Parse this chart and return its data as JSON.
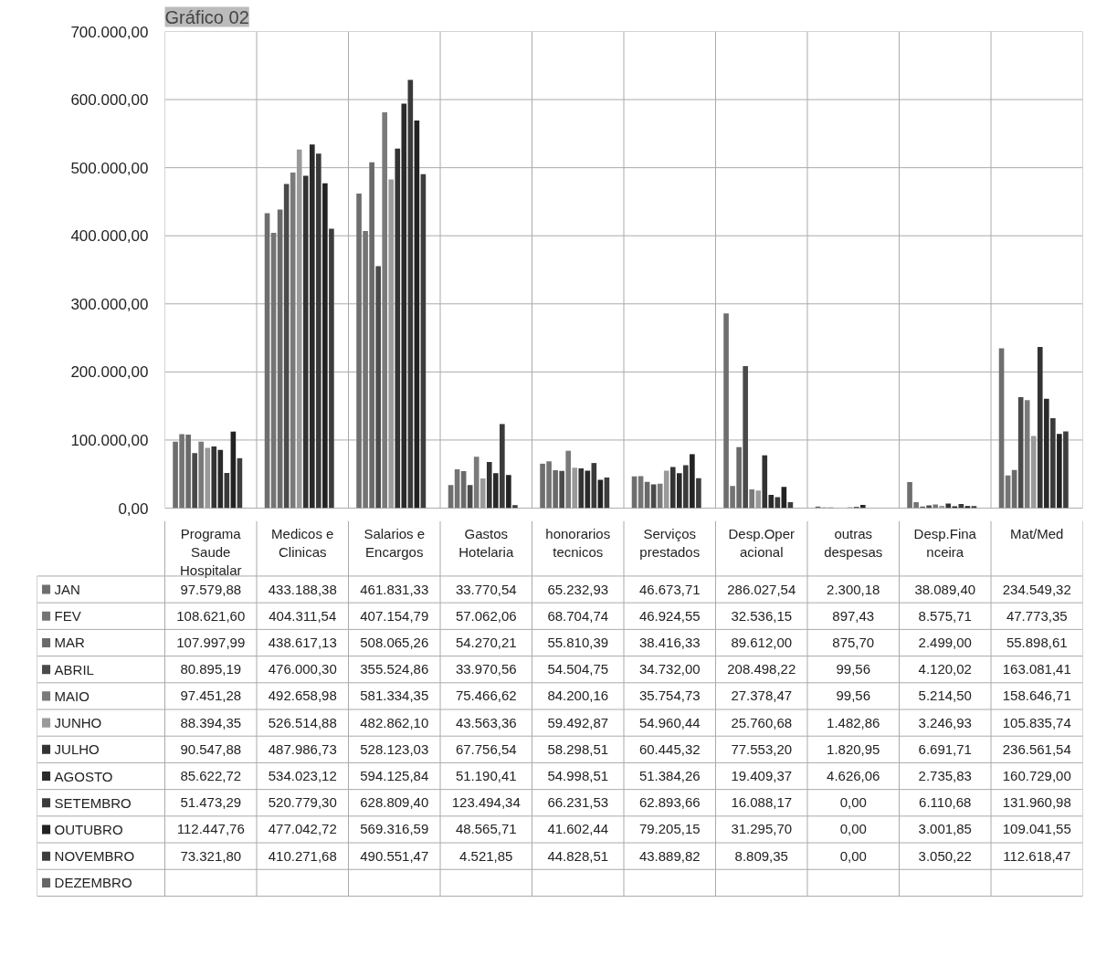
{
  "chart_data": {
    "type": "bar",
    "title": "Gráfico 02",
    "categories": [
      "Programa Saude Hospitalar",
      "Medicos e Clinicas",
      "Salarios e Encargos",
      "Gastos Hotelaria",
      "honorarios tecnicos",
      "Serviços prestados",
      "Desp.Operacional",
      "outras despesas",
      "Desp.Financeira",
      "Mat/Med"
    ],
    "series": [
      {
        "name": "JAN",
        "color": "#6e6e6e",
        "values": [
          97579.88,
          433188.38,
          461831.33,
          33770.54,
          65232.93,
          46673.71,
          286027.54,
          2300.18,
          38089.4,
          234549.32
        ],
        "value_labels": [
          "97.579,88",
          "433.188,38",
          "461.831,33",
          "33.770,54",
          "65.232,93",
          "46.673,71",
          "286.027,54",
          "2.300,18",
          "38.089,40",
          "234.549,32"
        ]
      },
      {
        "name": "FEV",
        "color": "#747474",
        "values": [
          108621.6,
          404311.54,
          407154.79,
          57062.06,
          68704.74,
          46924.55,
          32536.15,
          897.43,
          8575.71,
          47773.35
        ],
        "value_labels": [
          "108.621,60",
          "404.311,54",
          "407.154,79",
          "57.062,06",
          "68.704,74",
          "46.924,55",
          "32.536,15",
          "897,43",
          "8.575,71",
          "47.773,35"
        ]
      },
      {
        "name": "MAR",
        "color": "#6a6a6a",
        "values": [
          107997.99,
          438617.13,
          508065.26,
          54270.21,
          55810.39,
          38416.33,
          89612.0,
          875.7,
          2499.0,
          55898.61
        ],
        "value_labels": [
          "107.997,99",
          "438.617,13",
          "508.065,26",
          "54.270,21",
          "55.810,39",
          "38.416,33",
          "89.612,00",
          "875,70",
          "2.499,00",
          "55.898,61"
        ]
      },
      {
        "name": "ABRIL",
        "color": "#4a4a4a",
        "values": [
          80895.19,
          476000.3,
          355524.86,
          33970.56,
          54504.75,
          34732.0,
          208498.22,
          99.56,
          4120.02,
          163081.41
        ],
        "value_labels": [
          "80.895,19",
          "476.000,30",
          "355.524,86",
          "33.970,56",
          "54.504,75",
          "34.732,00",
          "208.498,22",
          "99,56",
          "4.120,02",
          "163.081,41"
        ]
      },
      {
        "name": "MAIO",
        "color": "#7a7a7a",
        "values": [
          97451.28,
          492658.98,
          581334.35,
          75466.62,
          84200.16,
          35754.73,
          27378.47,
          99.56,
          5214.5,
          158646.71
        ],
        "value_labels": [
          "97.451,28",
          "492.658,98",
          "581.334,35",
          "75.466,62",
          "84.200,16",
          "35.754,73",
          "27.378,47",
          "99,56",
          "5.214,50",
          "158.646,71"
        ]
      },
      {
        "name": "JUNHO",
        "color": "#9a9a9a",
        "values": [
          88394.35,
          526514.88,
          482862.1,
          43563.36,
          59492.87,
          54960.44,
          25760.68,
          1482.86,
          3246.93,
          105835.74
        ],
        "value_labels": [
          "88.394,35",
          "526.514,88",
          "482.862,10",
          "43.563,36",
          "59.492,87",
          "54.960,44",
          "25.760,68",
          "1.482,86",
          "3.246,93",
          "105.835,74"
        ]
      },
      {
        "name": "JULHO",
        "color": "#333333",
        "values": [
          90547.88,
          487986.73,
          528123.03,
          67756.54,
          58298.51,
          60445.32,
          77553.2,
          1820.95,
          6691.71,
          236561.54
        ],
        "value_labels": [
          "90.547,88",
          "487.986,73",
          "528.123,03",
          "67.756,54",
          "58.298,51",
          "60.445,32",
          "77.553,20",
          "1.820,95",
          "6.691,71",
          "236.561,54"
        ]
      },
      {
        "name": "AGOSTO",
        "color": "#2a2a2a",
        "values": [
          85622.72,
          534023.12,
          594125.84,
          51190.41,
          54998.51,
          51384.26,
          19409.37,
          4626.06,
          2735.83,
          160729.0
        ],
        "value_labels": [
          "85.622,72",
          "534.023,12",
          "594.125,84",
          "51.190,41",
          "54.998,51",
          "51.384,26",
          "19.409,37",
          "4.626,06",
          "2.735,83",
          "160.729,00"
        ]
      },
      {
        "name": "SETEMBRO",
        "color": "#3a3a3a",
        "values": [
          51473.29,
          520779.3,
          628809.4,
          123494.34,
          66231.53,
          62893.66,
          16088.17,
          0.0,
          6110.68,
          131960.98
        ],
        "value_labels": [
          "51.473,29",
          "520.779,30",
          "628.809,40",
          "123.494,34",
          "66.231,53",
          "62.893,66",
          "16.088,17",
          "0,00",
          "6.110,68",
          "131.960,98"
        ]
      },
      {
        "name": "OUTUBRO",
        "color": "#222222",
        "values": [
          112447.76,
          477042.72,
          569316.59,
          48565.71,
          41602.44,
          79205.15,
          31295.7,
          0.0,
          3001.85,
          109041.55
        ],
        "value_labels": [
          "112.447,76",
          "477.042,72",
          "569.316,59",
          "48.565,71",
          "41.602,44",
          "79.205,15",
          "31.295,70",
          "0,00",
          "3.001,85",
          "109.041,55"
        ]
      },
      {
        "name": "NOVEMBRO",
        "color": "#3d3d3d",
        "values": [
          73321.8,
          410271.68,
          490551.47,
          4521.85,
          44828.51,
          43889.82,
          8809.35,
          0.0,
          3050.22,
          112618.47
        ],
        "value_labels": [
          "73.321,80",
          "410.271,68",
          "490.551,47",
          "4.521,85",
          "44.828,51",
          "43.889,82",
          "8.809,35",
          "0,00",
          "3.050,22",
          "112.618,47"
        ]
      },
      {
        "name": "DEZEMBRO",
        "color": "#666666",
        "values": [
          null,
          null,
          null,
          null,
          null,
          null,
          null,
          null,
          null,
          null
        ]
      }
    ],
    "ylim": [
      0,
      700000
    ],
    "yticks": [
      {
        "value": 0,
        "label": "0,00"
      },
      {
        "value": 100000,
        "label": "100.000,00"
      },
      {
        "value": 200000,
        "label": "200.000,00"
      },
      {
        "value": 300000,
        "label": "300.000,00"
      },
      {
        "value": 400000,
        "label": "400.000,00"
      },
      {
        "value": 500000,
        "label": "500.000,00"
      },
      {
        "value": 600000,
        "label": "600.000,00"
      },
      {
        "value": 700000,
        "label": "700.000,00"
      }
    ],
    "grid": true,
    "legend": "bottom"
  }
}
